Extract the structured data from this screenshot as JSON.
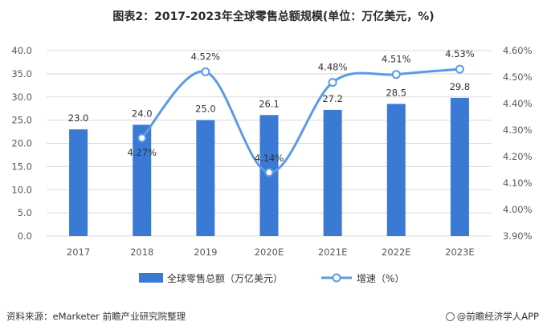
{
  "header": {
    "title": "图表2：2017-2023年全球零售总额规模(单位：万亿美元，%)"
  },
  "footer": {
    "source": "资料来源：eMarketer 前瞻产业研究院整理",
    "brand": "@前瞻经济学人APP"
  },
  "colors": {
    "bar": "#3a7ad5",
    "line": "#5b9be6",
    "grid": "#d9d9d9",
    "text": "#595959"
  },
  "chart_data": {
    "type": "bar",
    "title": "图表2：2017-2023年全球零售总额规模(单位：万亿美元，%)",
    "categories": [
      "2017",
      "2018",
      "2019",
      "2020E",
      "2021E",
      "2022E",
      "2023E"
    ],
    "series": [
      {
        "name": "全球零售总额（万亿美元）",
        "type": "bar",
        "axis": "left",
        "values": [
          23.0,
          24.0,
          25.0,
          26.1,
          27.2,
          28.5,
          29.8
        ],
        "labels": [
          "23.0",
          "24.0",
          "25.0",
          "26.1",
          "27.2",
          "28.5",
          "29.8"
        ]
      },
      {
        "name": "增速（%）",
        "type": "line",
        "axis": "right",
        "smooth": true,
        "values": [
          null,
          4.27,
          4.52,
          4.14,
          4.48,
          4.51,
          4.53
        ],
        "labels": [
          "",
          "4.27%",
          "4.52%",
          "4.14%",
          "4.48%",
          "4.51%",
          "4.53%"
        ]
      }
    ],
    "y_left": {
      "min": 0,
      "max": 40,
      "ticks": [
        "0.0",
        "5.0",
        "10.0",
        "15.0",
        "20.0",
        "25.0",
        "30.0",
        "35.0",
        "40.0"
      ]
    },
    "y_right": {
      "min": 3.9,
      "max": 4.6,
      "ticks": [
        "3.90%",
        "4.00%",
        "4.10%",
        "4.20%",
        "4.30%",
        "4.40%",
        "4.50%",
        "4.60%"
      ]
    },
    "grid": true,
    "legend_position": "bottom"
  }
}
